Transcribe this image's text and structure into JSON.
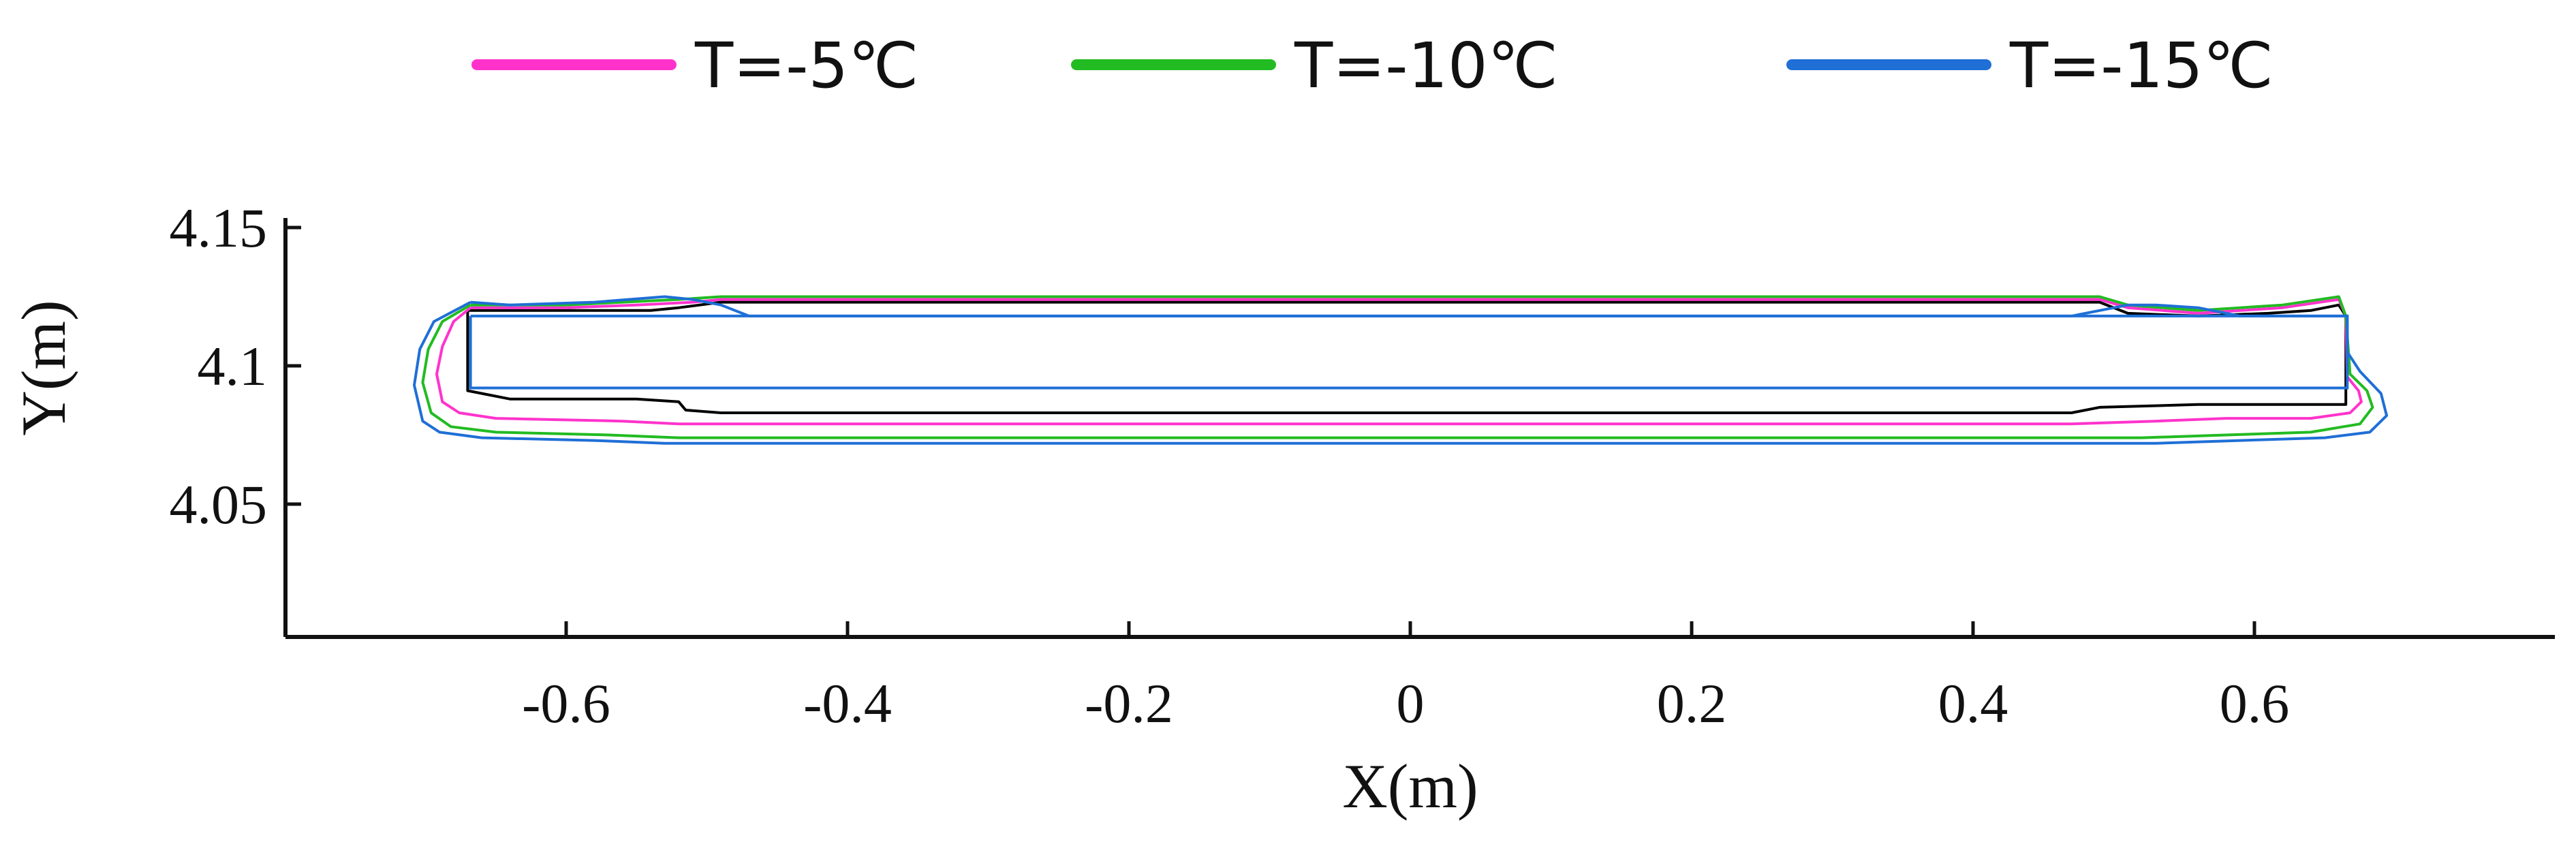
{
  "chart_data": {
    "type": "line",
    "title": "",
    "xlabel": "X(m)",
    "ylabel": "Y(m)",
    "xlim": [
      -0.79,
      0.79
    ],
    "ylim": [
      4.0,
      4.15
    ],
    "x_ticks": [
      -0.6,
      -0.4,
      -0.2,
      0,
      0.2,
      0.4,
      0.6
    ],
    "x_tick_labels": [
      "-0.6",
      "-0.4",
      "-0.2",
      "0",
      "0.2",
      "0.4",
      "0.6"
    ],
    "y_ticks": [
      4.05,
      4.1,
      4.15
    ],
    "y_tick_labels": [
      "4.05",
      "4.1",
      "4.15"
    ],
    "grid": false,
    "legend": "top",
    "series": [
      {
        "name": "",
        "color": "#000000",
        "x": [
          -0.67,
          -0.67,
          -0.64,
          -0.55,
          -0.52,
          -0.515,
          -0.49,
          -0.47,
          0.47,
          0.49,
          0.56,
          0.59,
          0.665,
          0.665,
          0.66,
          0.64,
          0.61,
          0.56,
          0.51,
          0.49,
          -0.49,
          -0.52,
          -0.54,
          -0.655,
          -0.67
        ],
        "y": [
          4.12,
          4.091,
          4.088,
          4.088,
          4.087,
          4.084,
          4.083,
          4.083,
          4.083,
          4.085,
          4.086,
          4.086,
          4.086,
          4.118,
          4.122,
          4.12,
          4.119,
          4.118,
          4.119,
          4.123,
          4.123,
          4.121,
          4.12,
          4.12,
          4.12
        ]
      },
      {
        "name": "T=-5℃",
        "color": "#ff33cc",
        "x": [
          -0.668,
          -0.68,
          -0.688,
          -0.692,
          -0.688,
          -0.676,
          -0.65,
          -0.56,
          -0.52,
          -0.47,
          0.47,
          0.53,
          0.58,
          0.64,
          0.668,
          0.676,
          0.674,
          0.666,
          0.665,
          0.66,
          0.62,
          0.59,
          0.56,
          0.51,
          0.49,
          -0.49,
          -0.51,
          -0.55,
          -0.6,
          -0.655,
          -0.668
        ],
        "y": [
          4.121,
          4.116,
          4.107,
          4.097,
          4.087,
          4.083,
          4.081,
          4.08,
          4.079,
          4.079,
          4.079,
          4.08,
          4.081,
          4.081,
          4.083,
          4.087,
          4.091,
          4.096,
          4.118,
          4.124,
          4.121,
          4.12,
          4.119,
          4.121,
          4.124,
          4.124,
          4.123,
          4.122,
          4.121,
          4.121,
          4.121
        ]
      },
      {
        "name": "T=-10℃",
        "color": "#22bb22",
        "x": [
          -0.668,
          -0.688,
          -0.698,
          -0.702,
          -0.696,
          -0.682,
          -0.65,
          -0.57,
          -0.52,
          0.52,
          0.58,
          0.64,
          0.675,
          0.684,
          0.68,
          0.668,
          0.665,
          0.66,
          0.62,
          0.59,
          0.56,
          0.51,
          0.49,
          -0.49,
          -0.52,
          -0.56,
          -0.6,
          -0.655,
          -0.668
        ],
        "y": [
          4.122,
          4.116,
          4.106,
          4.094,
          4.083,
          4.078,
          4.076,
          4.075,
          4.074,
          4.074,
          4.075,
          4.076,
          4.079,
          4.085,
          4.091,
          4.097,
          4.118,
          4.125,
          4.122,
          4.121,
          4.12,
          4.122,
          4.125,
          4.125,
          4.124,
          4.123,
          4.122,
          4.122,
          4.122
        ]
      },
      {
        "name": "T=-15℃",
        "color": "#1f6fd6",
        "x": [
          -0.668,
          -0.694,
          -0.704,
          -0.708,
          -0.702,
          -0.69,
          -0.66,
          -0.58,
          -0.53,
          -0.47,
          0.47,
          0.53,
          0.59,
          0.65,
          0.682,
          0.694,
          0.69,
          0.675,
          0.666,
          0.666,
          0.59,
          0.56,
          0.53,
          0.51,
          0.49,
          0.47,
          -0.47,
          -0.49,
          -0.51,
          -0.53,
          -0.58,
          -0.64,
          -0.668
        ],
        "y": [
          4.123,
          4.116,
          4.106,
          4.093,
          4.08,
          4.076,
          4.074,
          4.073,
          4.072,
          4.072,
          4.072,
          4.072,
          4.073,
          4.074,
          4.076,
          4.082,
          4.09,
          4.098,
          4.105,
          4.118,
          4.118,
          4.121,
          4.122,
          4.122,
          4.12,
          4.118,
          4.118,
          4.122,
          4.124,
          4.125,
          4.123,
          4.122,
          4.123
        ]
      }
    ],
    "box": {
      "color": "#1f6fd6",
      "x": [
        -0.668,
        0.666,
        0.666,
        -0.668,
        -0.668
      ],
      "y": [
        4.118,
        4.118,
        4.092,
        4.092,
        4.118
      ]
    }
  }
}
